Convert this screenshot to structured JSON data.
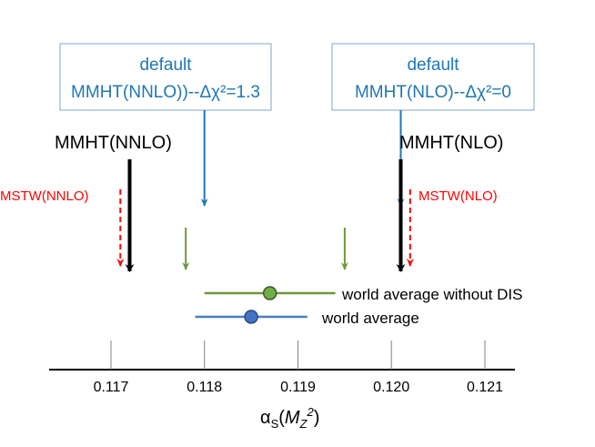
{
  "chart_data": {
    "type": "scatter",
    "title": "",
    "xlabel_base": "α",
    "xlabel_sub": "S",
    "xlabel_arg": "M",
    "xlabel_arg_sub": "Z",
    "xlabel_arg_sup": "2",
    "xlim": [
      0.1165,
      0.1212
    ],
    "x_ticks": [
      0.117,
      0.118,
      0.119,
      0.12,
      0.121
    ],
    "x_tick_labels": [
      "0.117",
      "0.118",
      "0.119",
      "0.120",
      "0.121"
    ],
    "boxes": [
      {
        "line1": "default",
        "line2": "MMHT(NNLO))--Δχ²=1.3",
        "arrow_to": 0.118,
        "color": "#1f77b4"
      },
      {
        "line1": "default",
        "line2": "MMHT(NLO)--Δχ²=0",
        "arrow_to": 0.1201,
        "color": "#1f77b4"
      }
    ],
    "main_arrows": [
      {
        "label": "MMHT(NNLO)",
        "x": 0.1172,
        "color": "#000000"
      },
      {
        "label": "MMHT(NLO)",
        "x": 0.1201,
        "color": "#000000"
      }
    ],
    "dashed_arrows": [
      {
        "label": "MSTW(NNLO)",
        "x": 0.1171,
        "color": "#ff0000"
      },
      {
        "label": "MSTW(NLO)",
        "x": 0.1202,
        "color": "#ff0000"
      }
    ],
    "green_arrows": [
      {
        "x": 0.1178,
        "color": "#70963c"
      },
      {
        "x": 0.1195,
        "color": "#70963c"
      }
    ],
    "points": [
      {
        "label": "world average without DIS",
        "value": 0.1187,
        "low": 0.118,
        "high": 0.1194,
        "color": "#70963c",
        "fill": "#70ad47"
      },
      {
        "label": "world average",
        "value": 0.1185,
        "low": 0.1179,
        "high": 0.1191,
        "color": "#4a7fbf",
        "fill": "#4472c4"
      }
    ]
  }
}
